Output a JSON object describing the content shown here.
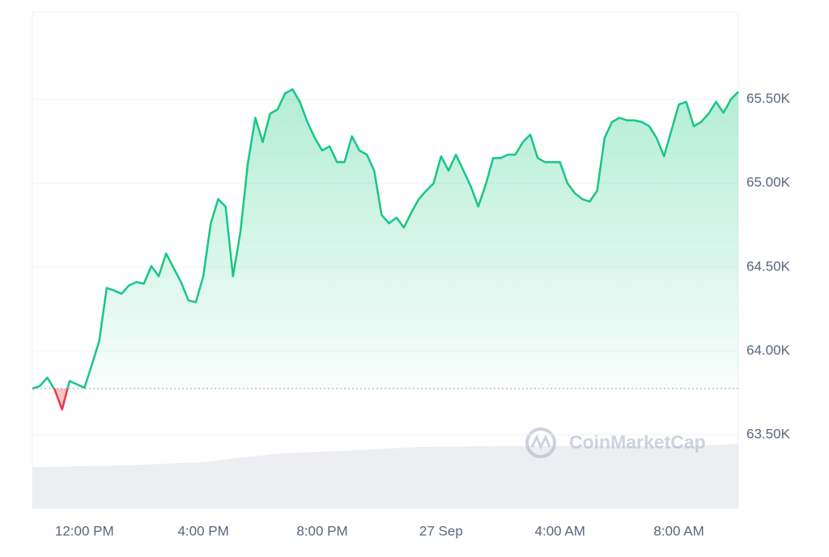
{
  "chart_data": {
    "type": "line",
    "categories": [
      null,
      null,
      null,
      null,
      null,
      null,
      null,
      "12:00 PM",
      null,
      null,
      null,
      null,
      null,
      null,
      null,
      null,
      null,
      null,
      null,
      null,
      null,
      null,
      null,
      "4:00 PM",
      null,
      null,
      null,
      null,
      null,
      null,
      null,
      null,
      null,
      null,
      null,
      null,
      null,
      null,
      null,
      "8:00 PM",
      null,
      null,
      null,
      null,
      null,
      null,
      null,
      null,
      null,
      null,
      null,
      null,
      null,
      null,
      null,
      "27 Sep",
      null,
      null,
      null,
      null,
      null,
      null,
      null,
      null,
      null,
      null,
      null,
      null,
      null,
      null,
      null,
      "4:00 AM",
      null,
      null,
      null,
      null,
      null,
      null,
      null,
      null,
      null,
      null,
      null,
      null,
      null,
      null,
      null,
      "8:00 AM",
      null,
      null,
      null,
      null,
      null,
      null,
      null,
      null
    ],
    "values": [
      63775,
      63790,
      63840,
      63770,
      63650,
      63820,
      63800,
      63780,
      63915,
      64060,
      64375,
      64360,
      64340,
      64390,
      64410,
      64400,
      64505,
      64445,
      64580,
      64495,
      64410,
      64300,
      64290,
      64445,
      64760,
      64905,
      64860,
      64445,
      64710,
      65120,
      65390,
      65245,
      65415,
      65440,
      65535,
      65560,
      65485,
      65365,
      65270,
      65195,
      65220,
      65125,
      65125,
      65280,
      65195,
      65170,
      65075,
      64810,
      64760,
      64795,
      64735,
      64825,
      64905,
      64955,
      65000,
      65160,
      65075,
      65170,
      65075,
      64980,
      64860,
      64990,
      65150,
      65150,
      65170,
      65170,
      65245,
      65290,
      65150,
      65125,
      65125,
      65125,
      65000,
      64940,
      64905,
      64890,
      64955,
      65270,
      65365,
      65390,
      65375,
      65375,
      65365,
      65340,
      65270,
      65160,
      65315,
      65470,
      65485,
      65340,
      65365,
      65415,
      65485,
      65420,
      65500,
      65545
    ],
    "baseline": 63775,
    "color": "#16c784",
    "down_color": "#ea3943",
    "ylim": [
      63060,
      66020
    ],
    "yticks": [
      {
        "value": 63500,
        "label": "63.50K"
      },
      {
        "value": 64000,
        "label": "64.00K"
      },
      {
        "value": 64500,
        "label": "64.50K"
      },
      {
        "value": 65000,
        "label": "65.00K"
      },
      {
        "value": 65500,
        "label": "65.50K"
      }
    ],
    "grid": true,
    "watermark": "CoinMarketCap"
  }
}
